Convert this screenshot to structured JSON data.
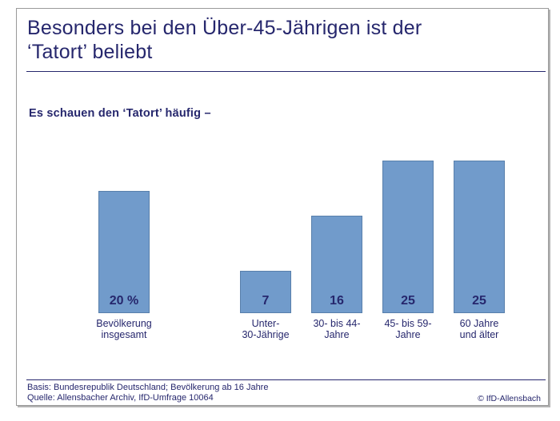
{
  "header": {
    "title_lines": [
      "Besonders bei den Über-45-Jährigen ist der",
      "‘Tatort’ beliebt"
    ]
  },
  "subtitle": "Es schauen den ‘Tatort’ häufig –",
  "chart_data": {
    "type": "bar",
    "title": "Besonders bei den Über-45-Jährigen ist der ‘Tatort’ beliebt",
    "subtitle": "Es schauen den ‘Tatort’ häufig –",
    "categories": [
      "Bevölkerung insgesamt",
      "Unter-30-Jährige",
      "30- bis 44-Jahre",
      "45- bis 59-Jahre",
      "60 Jahre und älter"
    ],
    "category_lines": [
      [
        "Bevölkerung",
        "insgesamt"
      ],
      [
        "Unter-",
        "30-Jährige"
      ],
      [
        "30- bis 44-",
        "Jahre"
      ],
      [
        "45- bis 59-",
        "Jahre"
      ],
      [
        "60 Jahre",
        "und älter"
      ]
    ],
    "values": [
      20,
      7,
      16,
      25,
      25
    ],
    "value_labels": [
      "20 %",
      "7",
      "16",
      "25",
      "25"
    ],
    "unit": "%",
    "xlabel": "",
    "ylabel": "",
    "ylim": [
      0,
      27
    ],
    "grid": false,
    "legend": false,
    "bar_color": "#719bcb",
    "text_color": "#26276d"
  },
  "footer": {
    "basis": "Basis: Bundesrepublik Deutschland; Bevölkerung ab 16 Jahre",
    "quelle": "Quelle: Allensbacher Archiv, IfD-Umfrage 10064",
    "copyright": "© IfD-Allensbach"
  },
  "colors": {
    "navy": "#26276d",
    "bar_blue": "#719bcb",
    "card_border": "#9a9a9a",
    "shadow": "#b3b3b3"
  }
}
